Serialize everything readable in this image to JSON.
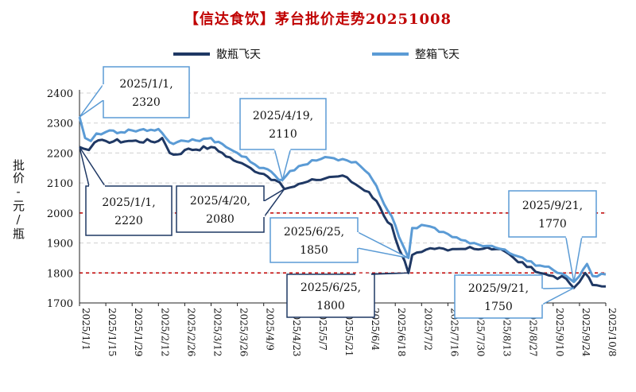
{
  "chart_data": {
    "type": "line",
    "title": "【信达食饮】茅台批价走势20251008",
    "ylabel": "批价-元/瓶",
    "ylim": [
      1700,
      2400
    ],
    "y_ticks": [
      "1700",
      "1800",
      "1900",
      "2000",
      "2100",
      "2200",
      "2300",
      "2400"
    ],
    "x_ticks": [
      "2025/1/1",
      "2025/1/15",
      "2025/1/29",
      "2025/2/12",
      "2025/2/26",
      "2025/3/12",
      "2025/3/26",
      "2025/4/9",
      "2025/4/23",
      "2025/5/7",
      "2025/5/21",
      "2025/6/4",
      "2025/6/18",
      "2025/7/2",
      "2025/7/16",
      "2025/7/30",
      "2025/8/13",
      "2025/8/27",
      "2025/9/10",
      "2025/9/24",
      "2025/10/8"
    ],
    "grid": "horizontal-dashed",
    "reference_lines": [
      2000,
      1800
    ],
    "legend_position": "top",
    "series": [
      {
        "name": "散瓶飞天",
        "color": "#1f3864",
        "points": [
          [
            "2025-01-01",
            2220
          ],
          [
            "2025-01-03",
            2215
          ],
          [
            "2025-01-06",
            2210
          ],
          [
            "2025-01-09",
            2235
          ],
          [
            "2025-01-15",
            2240
          ],
          [
            "2025-01-29",
            2240
          ],
          [
            "2025-02-12",
            2240
          ],
          [
            "2025-02-14",
            2250
          ],
          [
            "2025-02-18",
            2200
          ],
          [
            "2025-02-22",
            2195
          ],
          [
            "2025-02-26",
            2210
          ],
          [
            "2025-03-12",
            2220
          ],
          [
            "2025-03-18",
            2200
          ],
          [
            "2025-03-26",
            2170
          ],
          [
            "2025-04-02",
            2150
          ],
          [
            "2025-04-09",
            2130
          ],
          [
            "2025-04-15",
            2110
          ],
          [
            "2025-04-20",
            2080
          ],
          [
            "2025-04-23",
            2085
          ],
          [
            "2025-04-30",
            2100
          ],
          [
            "2025-05-07",
            2110
          ],
          [
            "2025-05-14",
            2120
          ],
          [
            "2025-05-21",
            2125
          ],
          [
            "2025-05-28",
            2095
          ],
          [
            "2025-06-04",
            2070
          ],
          [
            "2025-06-08",
            2040
          ],
          [
            "2025-06-12",
            1990
          ],
          [
            "2025-06-16",
            1960
          ],
          [
            "2025-06-20",
            1880
          ],
          [
            "2025-06-23",
            1840
          ],
          [
            "2025-06-25",
            1800
          ],
          [
            "2025-06-27",
            1860
          ],
          [
            "2025-07-02",
            1870
          ],
          [
            "2025-07-09",
            1880
          ],
          [
            "2025-07-16",
            1875
          ],
          [
            "2025-07-23",
            1880
          ],
          [
            "2025-07-30",
            1880
          ],
          [
            "2025-08-06",
            1885
          ],
          [
            "2025-08-13",
            1880
          ],
          [
            "2025-08-20",
            1850
          ],
          [
            "2025-08-27",
            1820
          ],
          [
            "2025-09-03",
            1800
          ],
          [
            "2025-09-10",
            1790
          ],
          [
            "2025-09-17",
            1780
          ],
          [
            "2025-09-21",
            1750
          ],
          [
            "2025-09-24",
            1770
          ],
          [
            "2025-09-27",
            1800
          ],
          [
            "2025-10-01",
            1760
          ],
          [
            "2025-10-08",
            1755
          ]
        ]
      },
      {
        "name": "整箱飞天",
        "color": "#5b9bd5",
        "points": [
          [
            "2025-01-01",
            2320
          ],
          [
            "2025-01-04",
            2250
          ],
          [
            "2025-01-07",
            2240
          ],
          [
            "2025-01-10",
            2265
          ],
          [
            "2025-01-15",
            2270
          ],
          [
            "2025-01-29",
            2275
          ],
          [
            "2025-02-12",
            2280
          ],
          [
            "2025-02-16",
            2250
          ],
          [
            "2025-02-20",
            2230
          ],
          [
            "2025-02-26",
            2240
          ],
          [
            "2025-03-12",
            2250
          ],
          [
            "2025-03-20",
            2220
          ],
          [
            "2025-03-26",
            2200
          ],
          [
            "2025-04-02",
            2170
          ],
          [
            "2025-04-09",
            2150
          ],
          [
            "2025-04-15",
            2125
          ],
          [
            "2025-04-19",
            2110
          ],
          [
            "2025-04-23",
            2140
          ],
          [
            "2025-04-30",
            2160
          ],
          [
            "2025-05-07",
            2175
          ],
          [
            "2025-05-14",
            2185
          ],
          [
            "2025-05-21",
            2180
          ],
          [
            "2025-05-28",
            2170
          ],
          [
            "2025-06-04",
            2130
          ],
          [
            "2025-06-08",
            2090
          ],
          [
            "2025-06-12",
            2030
          ],
          [
            "2025-06-16",
            1990
          ],
          [
            "2025-06-20",
            1920
          ],
          [
            "2025-06-23",
            1880
          ],
          [
            "2025-06-25",
            1850
          ],
          [
            "2025-06-27",
            1950
          ],
          [
            "2025-07-02",
            1960
          ],
          [
            "2025-07-09",
            1950
          ],
          [
            "2025-07-16",
            1930
          ],
          [
            "2025-07-23",
            1910
          ],
          [
            "2025-07-30",
            1900
          ],
          [
            "2025-08-06",
            1890
          ],
          [
            "2025-08-13",
            1880
          ],
          [
            "2025-08-20",
            1860
          ],
          [
            "2025-08-27",
            1840
          ],
          [
            "2025-09-03",
            1825
          ],
          [
            "2025-09-10",
            1810
          ],
          [
            "2025-09-17",
            1790
          ],
          [
            "2025-09-21",
            1770
          ],
          [
            "2025-09-24",
            1790
          ],
          [
            "2025-09-28",
            1830
          ],
          [
            "2025-10-01",
            1790
          ],
          [
            "2025-10-08",
            1795
          ]
        ]
      }
    ],
    "annotations": [
      {
        "text1": "2025/1/1,",
        "text2": "2320",
        "series": "整箱飞天",
        "date": "2025-01-01",
        "value": 2320
      },
      {
        "text1": "2025/4/19,",
        "text2": "2110",
        "series": "整箱飞天",
        "date": "2025-04-19",
        "value": 2110
      },
      {
        "text1": "2025/1/1,",
        "text2": "2220",
        "series": "散瓶飞天",
        "date": "2025-01-01",
        "value": 2220
      },
      {
        "text1": "2025/4/20,",
        "text2": "2080",
        "series": "散瓶飞天",
        "date": "2025-04-20",
        "value": 2080
      },
      {
        "text1": "2025/6/25,",
        "text2": "1850",
        "series": "整箱飞天",
        "date": "2025-06-25",
        "value": 1850
      },
      {
        "text1": "2025/6/25,",
        "text2": "1800",
        "series": "散瓶飞天",
        "date": "2025-06-25",
        "value": 1800
      },
      {
        "text1": "2025/9/21,",
        "text2": "1770",
        "series": "整箱飞天",
        "date": "2025-09-21",
        "value": 1770
      },
      {
        "text1": "2025/9/21,",
        "text2": "1750",
        "series": "散瓶飞天",
        "date": "2025-09-21",
        "value": 1750
      }
    ]
  }
}
